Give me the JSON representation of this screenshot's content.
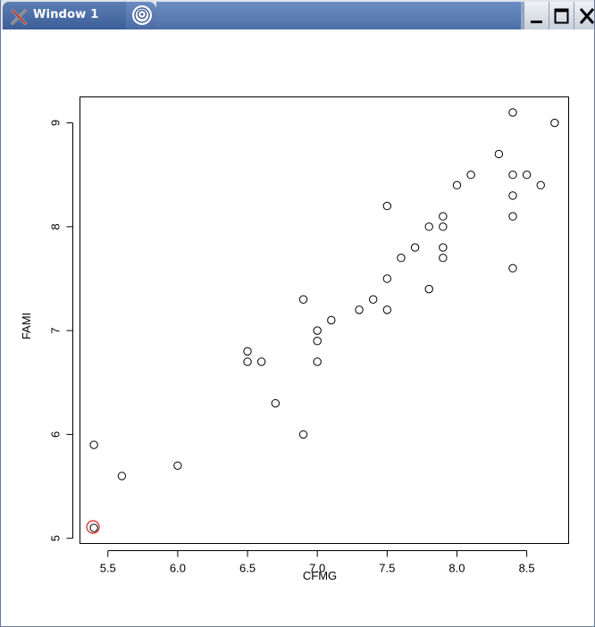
{
  "window": {
    "title": "Window 1",
    "icons": {
      "app_icon": "x-window-icon",
      "tab_icon": "spiral-icon"
    },
    "controls": [
      "minimize-icon",
      "maximize-icon",
      "close-icon"
    ]
  },
  "chart_data": {
    "type": "scatter",
    "title": "",
    "xlabel": "CFMG",
    "ylabel": "FAMI",
    "xlim": [
      5.3,
      8.8
    ],
    "ylim": [
      4.95,
      9.25
    ],
    "xticks": [
      "5.5",
      "6.0",
      "6.5",
      "7.0",
      "7.5",
      "8.0",
      "8.5"
    ],
    "yticks": [
      "5",
      "6",
      "7",
      "8",
      "9"
    ],
    "grid": false,
    "points": [
      {
        "x": 5.4,
        "y": 5.1
      },
      {
        "x": 5.4,
        "y": 5.9
      },
      {
        "x": 5.6,
        "y": 5.6
      },
      {
        "x": 6.0,
        "y": 5.7
      },
      {
        "x": 6.5,
        "y": 6.7
      },
      {
        "x": 6.5,
        "y": 6.8
      },
      {
        "x": 6.6,
        "y": 6.7
      },
      {
        "x": 6.7,
        "y": 6.3
      },
      {
        "x": 6.9,
        "y": 6.0
      },
      {
        "x": 6.9,
        "y": 7.3
      },
      {
        "x": 7.0,
        "y": 6.7
      },
      {
        "x": 7.0,
        "y": 6.9
      },
      {
        "x": 7.0,
        "y": 7.0
      },
      {
        "x": 7.1,
        "y": 7.1
      },
      {
        "x": 7.3,
        "y": 7.2
      },
      {
        "x": 7.4,
        "y": 7.3
      },
      {
        "x": 7.5,
        "y": 7.2
      },
      {
        "x": 7.5,
        "y": 7.5
      },
      {
        "x": 7.5,
        "y": 8.2
      },
      {
        "x": 7.6,
        "y": 7.7
      },
      {
        "x": 7.7,
        "y": 7.8
      },
      {
        "x": 7.8,
        "y": 7.4
      },
      {
        "x": 7.8,
        "y": 8.0
      },
      {
        "x": 7.9,
        "y": 7.7
      },
      {
        "x": 7.9,
        "y": 7.8
      },
      {
        "x": 7.9,
        "y": 8.0
      },
      {
        "x": 7.9,
        "y": 8.1
      },
      {
        "x": 8.0,
        "y": 8.4
      },
      {
        "x": 8.1,
        "y": 8.5
      },
      {
        "x": 8.3,
        "y": 8.7
      },
      {
        "x": 8.4,
        "y": 7.6
      },
      {
        "x": 8.4,
        "y": 8.1
      },
      {
        "x": 8.4,
        "y": 8.3
      },
      {
        "x": 8.4,
        "y": 8.5
      },
      {
        "x": 8.4,
        "y": 9.1
      },
      {
        "x": 8.5,
        "y": 8.5
      },
      {
        "x": 8.6,
        "y": 8.4
      },
      {
        "x": 8.7,
        "y": 9.0
      }
    ],
    "highlight": {
      "x": 5.4,
      "y": 5.1,
      "color": "#e03030"
    },
    "colors": {
      "point": "#000000",
      "axis": "#000000",
      "background": "#ffffff"
    }
  }
}
